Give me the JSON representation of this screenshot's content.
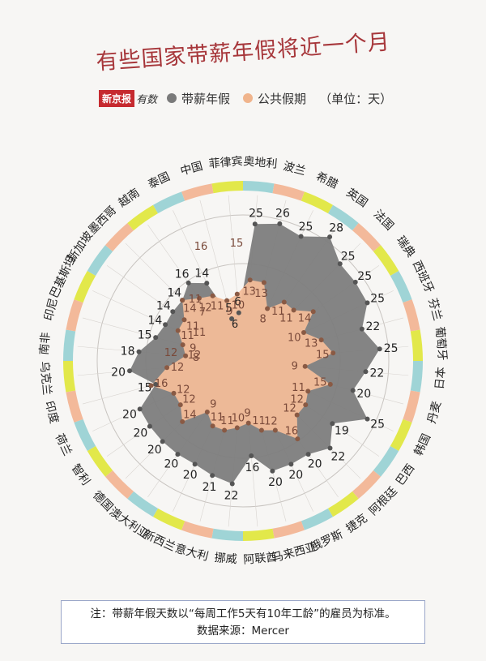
{
  "title": "有些国家带薪年假将近一个月",
  "legend": {
    "logo": "新京报",
    "logo2": "有数",
    "paid_leave": "带薪年假",
    "public_holiday": "公共假期",
    "unit": "（单位：天）",
    "paid_color": "#7a7a7a",
    "public_color": "#f0b48c"
  },
  "chart_data": {
    "type": "radar",
    "countries": [
      "奥地利",
      "波兰",
      "希腊",
      "英国",
      "法国",
      "瑞典",
      "西班牙",
      "芬兰",
      "葡萄牙",
      "日本",
      "丹麦",
      "韩国",
      "巴西",
      "阿根廷",
      "捷克",
      "俄罗斯",
      "马来西亚",
      "阿联酋",
      "挪威",
      "意大利",
      "新西兰",
      "澳大利亚",
      "德国",
      "智利",
      "荷兰",
      "印度",
      "乌克兰",
      "南非",
      "印尼",
      "巴基斯坦",
      "新加坡",
      "墨西哥",
      "越南",
      "泰国",
      "中国",
      "菲律宾"
    ],
    "series": [
      {
        "name": "带薪年假",
        "values": [
          25,
          26,
          25,
          28,
          25,
          25,
          25,
          22,
          25,
          22,
          20,
          25,
          19,
          22,
          20,
          20,
          20,
          16,
          22,
          21,
          20,
          20,
          20,
          20,
          20,
          15,
          20,
          18,
          15,
          14,
          14,
          14,
          16,
          14,
          5,
          6
        ]
      },
      {
        "name": "公共假期",
        "values": [
          13,
          13,
          8,
          11,
          11,
          14,
          10,
          13,
          15,
          9,
          15,
          11,
          12,
          12,
          16,
          12,
          11,
          9,
          10,
          11,
          11,
          9,
          14,
          12,
          12,
          16,
          12,
          8,
          9,
          11,
          11,
          14,
          12,
          11,
          9,
          10
        ]
      }
    ],
    "extra_labels": [
      {
        "value": "7",
        "label": "公共假期"
      },
      {
        "value": "16",
        "label": "公共假期"
      },
      {
        "value": "15",
        "label": "公共假期"
      },
      {
        "value": "11",
        "label": "公共假期"
      },
      {
        "value": "12",
        "label": "公共假期"
      },
      {
        "value": "12",
        "label": "公共假期"
      },
      {
        "value": "6",
        "label": "带薪年假"
      },
      {
        "value": "11",
        "label": "公共假期"
      }
    ],
    "rmax": 30
  },
  "note": {
    "line1": "注：带薪年假天数以“每周工作5天有10年工龄”的雇员为标准。",
    "line2": "数据来源：Mercer"
  }
}
